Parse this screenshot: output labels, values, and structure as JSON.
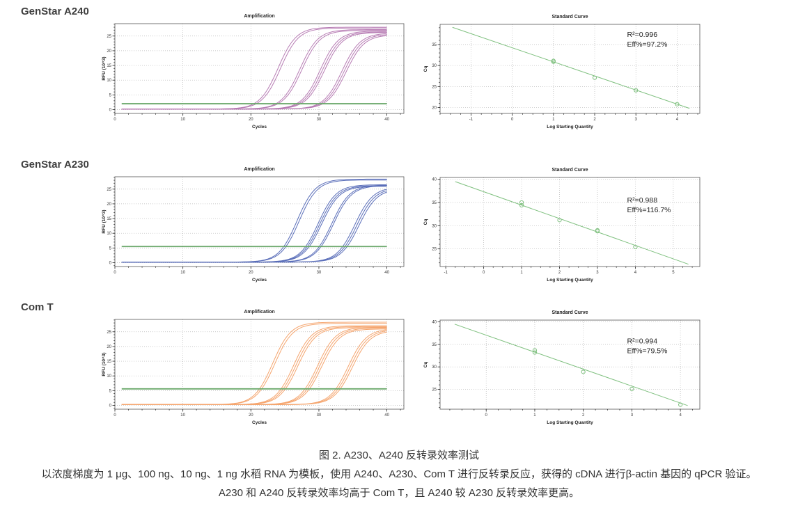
{
  "rows": [
    {
      "label": "GenStar A240"
    },
    {
      "label": "GenStar A230"
    },
    {
      "label": "Com T"
    }
  ],
  "caption": {
    "line1": "图 2. A230、A240 反转录效率测试",
    "line2": "以浓度梯度为 1 μg、100 ng、10 ng、1 ng 水稻 RNA 为模板，使用 A240、A230、Com T 进行反转录反应，获得的 cDNA 进行β-actin 基因的 qPCR 验证。",
    "line3": "A230 和 A240 反转录效率均高于 Com T，且 A240 较 A230 反转录效率更高。"
  },
  "colors": {
    "a240_curve": "#b77cb4",
    "a230_curve": "#5a6eb9",
    "comt_curve": "#f5a56e",
    "threshold": "#6aa86a",
    "standard_line": "#7fc07f",
    "grid": "#b8b8b8",
    "axis": "#555555",
    "text": "#222222"
  },
  "chart_data": [
    {
      "kind": "amplification",
      "row": "GenStar A240",
      "type": "line",
      "title": "Amplification",
      "xlabel": "Cycles",
      "ylabel": "RFU (10^3)",
      "xlim": [
        0,
        42.5
      ],
      "xticks": [
        0,
        10,
        20,
        30,
        40
      ],
      "xminor": 2,
      "ylim": [
        -1.3,
        29.2
      ],
      "yticks": [
        0,
        5,
        10,
        15,
        20,
        25
      ],
      "yminor": 1,
      "grid": true,
      "threshold": 2.0,
      "baseline": 0.2,
      "k": 0.75,
      "color_key": "a240_curve",
      "curves": [
        {
          "mid": 24.0,
          "plateau": 27.8
        },
        {
          "mid": 24.35,
          "plateau": 27.5
        },
        {
          "mid": 27.2,
          "plateau": 27.0
        },
        {
          "mid": 27.5,
          "plateau": 26.7
        },
        {
          "mid": 30.2,
          "plateau": 26.5
        },
        {
          "mid": 30.5,
          "plateau": 26.2
        },
        {
          "mid": 30.8,
          "plateau": 26.0
        },
        {
          "mid": 33.4,
          "plateau": 25.8
        },
        {
          "mid": 33.7,
          "plateau": 25.5
        },
        {
          "mid": 34.0,
          "plateau": 25.2
        }
      ]
    },
    {
      "kind": "standard_curve",
      "row": "GenStar A240",
      "type": "scatter",
      "title": "Standard Curve",
      "xlabel": "Log Starting Quantity",
      "ylabel": "Cq",
      "xlim": [
        -1.75,
        4.55
      ],
      "xticks": [
        -1,
        0,
        1,
        2,
        3,
        4
      ],
      "xminor": 0.25,
      "ylim": [
        18.6,
        39.8
      ],
      "yticks": [
        20,
        25,
        30,
        35
      ],
      "yminor": 1,
      "grid": true,
      "line": {
        "x": [
          -1.45,
          4.3
        ],
        "y": [
          39.1,
          19.8
        ]
      },
      "points": [
        [
          1,
          31.1
        ],
        [
          1,
          30.9
        ],
        [
          2,
          27.1
        ],
        [
          3,
          24.1
        ],
        [
          4,
          20.8
        ]
      ],
      "r2_label": "R²=0.996",
      "eff_label": "Eff%=97.2%",
      "annotation_y": 0.14,
      "color_key": "standard_line"
    },
    {
      "kind": "amplification",
      "row": "GenStar A230",
      "type": "line",
      "title": "Amplification",
      "xlabel": "Cycles",
      "ylabel": "RFU (10^3)",
      "xlim": [
        0,
        42.5
      ],
      "xticks": [
        0,
        10,
        20,
        30,
        40
      ],
      "xminor": 2,
      "ylim": [
        -1.3,
        29.2
      ],
      "yticks": [
        0,
        5,
        10,
        15,
        20,
        25
      ],
      "yminor": 1,
      "grid": true,
      "threshold": 5.5,
      "baseline": 0.2,
      "k": 0.75,
      "color_key": "a230_curve",
      "curves": [
        {
          "mid": 26.8,
          "plateau": 28.2
        },
        {
          "mid": 27.1,
          "plateau": 27.9
        },
        {
          "mid": 29.9,
          "plateau": 26.3
        },
        {
          "mid": 30.15,
          "plateau": 26.0
        },
        {
          "mid": 30.4,
          "plateau": 25.8
        },
        {
          "mid": 31.9,
          "plateau": 26.2
        },
        {
          "mid": 32.15,
          "plateau": 26.0
        },
        {
          "mid": 35.3,
          "plateau": 25.5
        },
        {
          "mid": 35.6,
          "plateau": 25.2
        },
        {
          "mid": 35.9,
          "plateau": 24.9
        }
      ]
    },
    {
      "kind": "standard_curve",
      "row": "GenStar A230",
      "type": "scatter",
      "title": "Standard Curve",
      "xlabel": "Log Starting Quantity",
      "ylabel": "Cq",
      "xlim": [
        -1.15,
        5.7
      ],
      "xticks": [
        -1,
        0,
        1,
        2,
        3,
        4,
        5
      ],
      "xminor": 0.25,
      "ylim": [
        21.2,
        40.4
      ],
      "yticks": [
        25,
        30,
        35,
        40
      ],
      "yminor": 1,
      "grid": true,
      "line": {
        "x": [
          -0.75,
          5.4
        ],
        "y": [
          39.5,
          21.7
        ]
      },
      "points": [
        [
          1,
          35.0
        ],
        [
          1,
          34.4
        ],
        [
          2,
          31.2
        ],
        [
          3,
          29.0
        ],
        [
          3,
          28.8
        ],
        [
          4,
          25.4
        ]
      ],
      "r2_label": "R²=0.988",
      "eff_label": "Eff%=116.7%",
      "annotation_y": 0.28,
      "color_key": "standard_line"
    },
    {
      "kind": "amplification",
      "row": "Com T",
      "type": "line",
      "title": "Amplification",
      "xlabel": "Cycles",
      "ylabel": "RFU (10^3)",
      "xlim": [
        0,
        42.5
      ],
      "xticks": [
        0,
        10,
        20,
        30,
        40
      ],
      "xminor": 2,
      "ylim": [
        -1.3,
        29.2
      ],
      "yticks": [
        0,
        5,
        10,
        15,
        20,
        25
      ],
      "yminor": 1,
      "grid": true,
      "threshold": 5.6,
      "baseline": 0.25,
      "k": 0.75,
      "color_key": "comt_curve",
      "curves": [
        {
          "mid": 23.2,
          "plateau": 28.0
        },
        {
          "mid": 23.5,
          "plateau": 27.6
        },
        {
          "mid": 26.3,
          "plateau": 26.8
        },
        {
          "mid": 26.6,
          "plateau": 26.5
        },
        {
          "mid": 26.9,
          "plateau": 26.2
        },
        {
          "mid": 29.8,
          "plateau": 26.3
        },
        {
          "mid": 30.1,
          "plateau": 26.0
        },
        {
          "mid": 30.4,
          "plateau": 25.7
        },
        {
          "mid": 34.3,
          "plateau": 25.8
        },
        {
          "mid": 34.6,
          "plateau": 25.5
        },
        {
          "mid": 34.9,
          "plateau": 25.2
        }
      ]
    },
    {
      "kind": "standard_curve",
      "row": "Com T",
      "type": "scatter",
      "title": "Standard Curve",
      "xlabel": "Log Starting Quantity",
      "ylabel": "Cq",
      "xlim": [
        -0.95,
        4.4
      ],
      "xticks": [
        0,
        1,
        2,
        3,
        4
      ],
      "xminor": 0.25,
      "ylim": [
        20.6,
        40.4
      ],
      "yticks": [
        25,
        30,
        35,
        40
      ],
      "yminor": 1,
      "grid": true,
      "line": {
        "x": [
          -0.65,
          4.15
        ],
        "y": [
          39.5,
          21.4
        ]
      },
      "points": [
        [
          1,
          33.7
        ],
        [
          1,
          33.2
        ],
        [
          2,
          28.9
        ],
        [
          3,
          25.1
        ],
        [
          4,
          21.6
        ]
      ],
      "r2_label": "R²=0.994",
      "eff_label": "Eff%=79.5%",
      "annotation_y": 0.26,
      "color_key": "standard_line"
    }
  ]
}
